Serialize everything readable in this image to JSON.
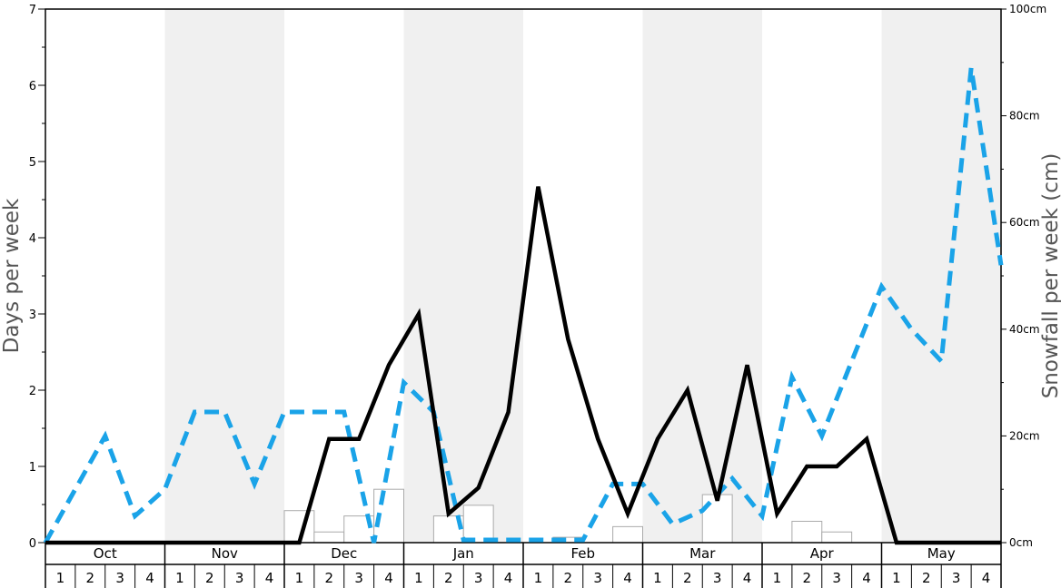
{
  "chart_data": {
    "type": "line",
    "y_left_label": "Days per week",
    "y_right_label": "Snowfall per week (cm)",
    "y_left_range": [
      0,
      7
    ],
    "y_left_ticks": [
      "0",
      "1",
      "2",
      "3",
      "4",
      "5",
      "6",
      "7"
    ],
    "y_right_range": [
      0,
      100
    ],
    "y_right_ticks": [
      "0cm",
      "20cm",
      "40cm",
      "60cm",
      "80cm",
      "100cm"
    ],
    "months": [
      "Oct",
      "Nov",
      "Dec",
      "Jan",
      "Feb",
      "Mar",
      "Apr",
      "May"
    ],
    "weeks": [
      "1",
      "2",
      "3",
      "4"
    ],
    "shaded_months": [
      "Nov",
      "Jan",
      "Mar",
      "May"
    ],
    "colors": {
      "days_line": "#000000",
      "snowfall_line": "#1aa3e8",
      "snowfall_bar_stroke": "#aaaaaa",
      "shade": "#f0f0f0"
    },
    "series": [
      {
        "key": "days_per_week",
        "style": "solid",
        "axis": "left",
        "values": [
          0,
          0,
          0,
          0,
          0,
          0,
          0,
          0,
          0,
          1.36,
          1.36,
          2.33,
          3.0,
          0.38,
          0.72,
          1.71,
          4.67,
          2.67,
          1.36,
          0.38,
          1.36,
          2.0,
          0.55,
          2.33,
          0.38,
          1.0,
          1.0,
          1.36,
          0,
          0,
          0,
          0
        ]
      },
      {
        "key": "avg_snowfall_line",
        "style": "dashed",
        "axis": "right",
        "values": [
          0,
          10,
          20,
          5,
          10,
          24.5,
          24.5,
          11,
          24.5,
          24.5,
          24.5,
          0,
          30,
          24.5,
          0.5,
          0.5,
          0.5,
          0.5,
          0.5,
          11,
          11,
          3.5,
          6,
          12,
          5,
          31,
          20,
          34,
          48,
          40,
          34,
          89,
          52
        ]
      },
      {
        "key": "snowfall_bars",
        "style": "bar",
        "axis": "right",
        "values": [
          0,
          0,
          0,
          0,
          0,
          0,
          0,
          0,
          6,
          2,
          5,
          10,
          0,
          5,
          7,
          0,
          0,
          1,
          0,
          3,
          0,
          0,
          9,
          0,
          0,
          4,
          2,
          0,
          0,
          0,
          0,
          0
        ]
      }
    ]
  }
}
